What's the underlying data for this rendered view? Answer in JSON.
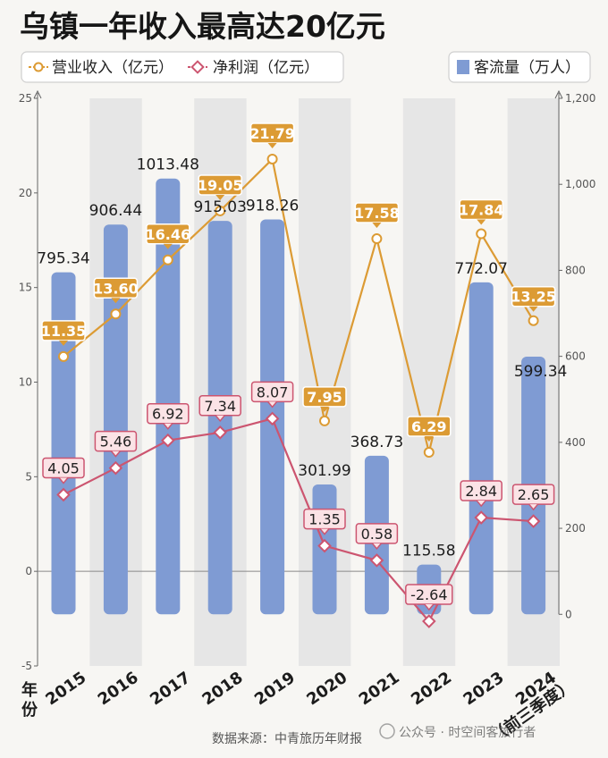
{
  "title": "乌镇一年收入最高达20亿元",
  "legend_left": {
    "revenue": "营业收入（亿元）",
    "net_profit": "净利润（亿元）"
  },
  "legend_right": {
    "visitors": "客流量（万人）"
  },
  "x_axis_label": [
    "年",
    "份"
  ],
  "source": "数据来源：中青旅历年财报",
  "watermark": "公众号 · 时空间客旅行者",
  "colors": {
    "bar": "#7f9bd3",
    "revenue": "#dc9b34",
    "net_profit": "#cc5570",
    "stripe": "#e6e6e6",
    "background": "#f7f6f3"
  },
  "chart_data": {
    "type": "bar+line",
    "categories": [
      "2015",
      "2016",
      "2017",
      "2018",
      "2019",
      "2020",
      "2021",
      "2022",
      "2023",
      "2024（前三季度）"
    ],
    "category_labels": [
      "2015",
      "2016",
      "2017",
      "2018",
      "2019",
      "2020",
      "2021",
      "2022",
      "2023",
      "2024"
    ],
    "category_note": "（前三季度）",
    "left_axis": {
      "ylim": [
        -5,
        25
      ],
      "ticks": [
        "-5",
        "0",
        "5",
        "10",
        "15",
        "20",
        "25"
      ],
      "tick_values": [
        -5,
        0,
        5,
        10,
        15,
        20,
        25
      ]
    },
    "right_axis": {
      "ylim": [
        -120,
        1200
      ],
      "ticks": [
        "0",
        "200",
        "400",
        "600",
        "800",
        "1,000",
        "1,200"
      ],
      "tick_values": [
        0,
        200,
        400,
        600,
        800,
        1000,
        1200
      ]
    },
    "series": [
      {
        "name": "客流量（万人）",
        "type": "bar",
        "axis": "right",
        "values": [
          795.34,
          906.44,
          1013.48,
          915.03,
          918.26,
          301.99,
          368.73,
          115.58,
          772.07,
          599.34
        ],
        "labels": [
          "795.34",
          "906.44",
          "1013.48",
          "915.03",
          "918.26",
          "301.99",
          "368.73",
          "115.58",
          "772.07",
          "599.34"
        ]
      },
      {
        "name": "营业收入（亿元）",
        "type": "line",
        "axis": "left",
        "values": [
          11.35,
          13.6,
          16.46,
          19.05,
          21.79,
          7.95,
          17.58,
          6.29,
          17.84,
          13.25
        ],
        "labels": [
          "11.35",
          "13.60",
          "16.46",
          "19.05",
          "21.79",
          "7.95",
          "17.58",
          "6.29",
          "17.84",
          "13.25"
        ]
      },
      {
        "name": "净利润（亿元）",
        "type": "line",
        "axis": "left",
        "values": [
          4.05,
          5.46,
          6.92,
          7.34,
          8.07,
          1.35,
          0.58,
          -2.64,
          2.84,
          2.65
        ],
        "labels": [
          "4.05",
          "5.46",
          "6.92",
          "7.34",
          "8.07",
          "1.35",
          "0.58",
          "-2.64",
          "2.84",
          "2.65"
        ]
      }
    ],
    "grid": false,
    "legend": "top"
  }
}
